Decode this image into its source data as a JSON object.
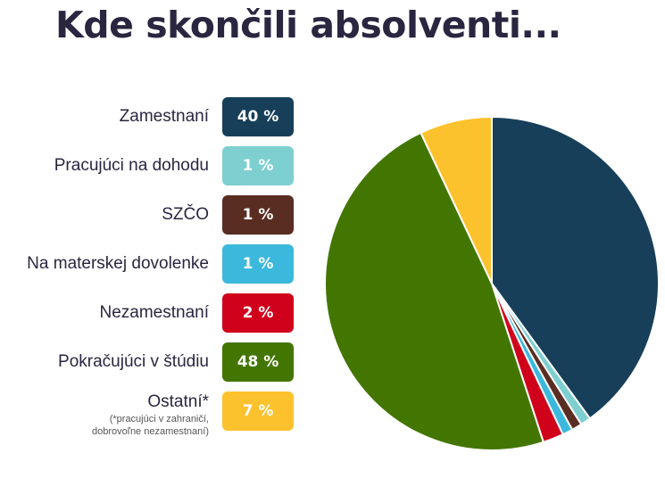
{
  "title": "Kde skončili absolventi...",
  "chart_data": {
    "type": "pie",
    "title": "Kde skončili absolventi...",
    "start_angle_deg": 0,
    "direction": "clockwise",
    "slices": [
      {
        "label": "Zamestnaní",
        "value": 40,
        "value_label": "40 %",
        "color": "#173f5a"
      },
      {
        "label": "Pracujúci na dohodu",
        "value": 1,
        "value_label": "1 %",
        "color": "#7ecfd0"
      },
      {
        "label": "SZČO",
        "value": 1,
        "value_label": "1 %",
        "color": "#5a2d22"
      },
      {
        "label": "Na materskej dovolenke",
        "value": 1,
        "value_label": "1 %",
        "color": "#3cb8dc"
      },
      {
        "label": "Nezamestnaní",
        "value": 2,
        "value_label": "2 %",
        "color": "#d0021b"
      },
      {
        "label": "Pokračujúci v štúdiu",
        "value": 48,
        "value_label": "48 %",
        "color": "#437600"
      },
      {
        "label": "Ostatní*",
        "value": 7,
        "value_label": "7 %",
        "color": "#fcc22d"
      }
    ],
    "footnote": [
      "(*pracujúci v zahraničí,",
      "dobrovoľne nezamestnaní)"
    ]
  }
}
